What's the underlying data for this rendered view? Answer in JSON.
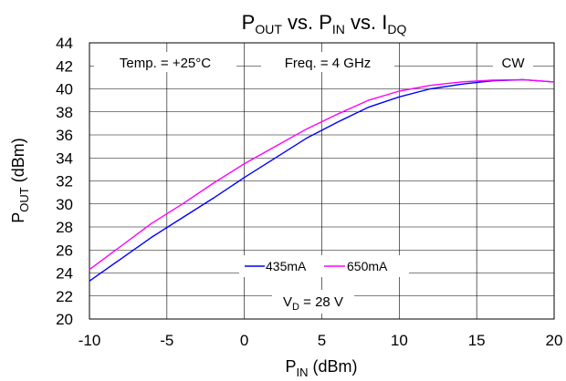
{
  "chart_data": {
    "type": "line",
    "title": {
      "base": "P",
      "sub1": "OUT",
      "mid1": " vs. P",
      "sub2": "IN",
      "mid2": " vs. I",
      "sub3": "DQ"
    },
    "xlabel": {
      "base": "P",
      "sub": "IN",
      "rest": " (dBm)"
    },
    "ylabel": {
      "base": "P",
      "sub": "OUT",
      "rest": " (dBm)"
    },
    "xlim": [
      -10,
      20
    ],
    "ylim": [
      20,
      44
    ],
    "x_ticks": [
      -10,
      -5,
      0,
      5,
      10,
      15,
      20
    ],
    "y_ticks": [
      20,
      22,
      24,
      26,
      28,
      30,
      32,
      34,
      36,
      38,
      40,
      42,
      44
    ],
    "grid": true,
    "annotations": {
      "temp": "Temp. = +25°C",
      "freq": "Freq. = 4 GHz",
      "mode": "CW",
      "vd_base": "V",
      "vd_sub": "D",
      "vd_rest": " = 28 V"
    },
    "legend_position": "lower-center",
    "series": [
      {
        "name": "435mA",
        "color": "#0000ff",
        "x": [
          -10,
          -8,
          -6,
          -4,
          -2,
          0,
          2,
          4,
          6,
          8,
          10,
          12,
          14,
          16,
          18,
          20
        ],
        "values": [
          23.3,
          25.2,
          27.1,
          28.8,
          30.5,
          32.3,
          34.0,
          35.7,
          37.1,
          38.4,
          39.3,
          40.0,
          40.4,
          40.7,
          40.8,
          40.6
        ]
      },
      {
        "name": "650mA",
        "color": "#ff00ff",
        "x": [
          -10,
          -8,
          -6,
          -4,
          -2,
          0,
          2,
          4,
          6,
          8,
          10,
          12,
          14,
          16,
          18,
          20
        ],
        "values": [
          24.3,
          26.3,
          28.3,
          30.0,
          31.8,
          33.5,
          35.0,
          36.5,
          37.8,
          39.0,
          39.8,
          40.3,
          40.6,
          40.75,
          40.8,
          40.6
        ]
      }
    ]
  }
}
